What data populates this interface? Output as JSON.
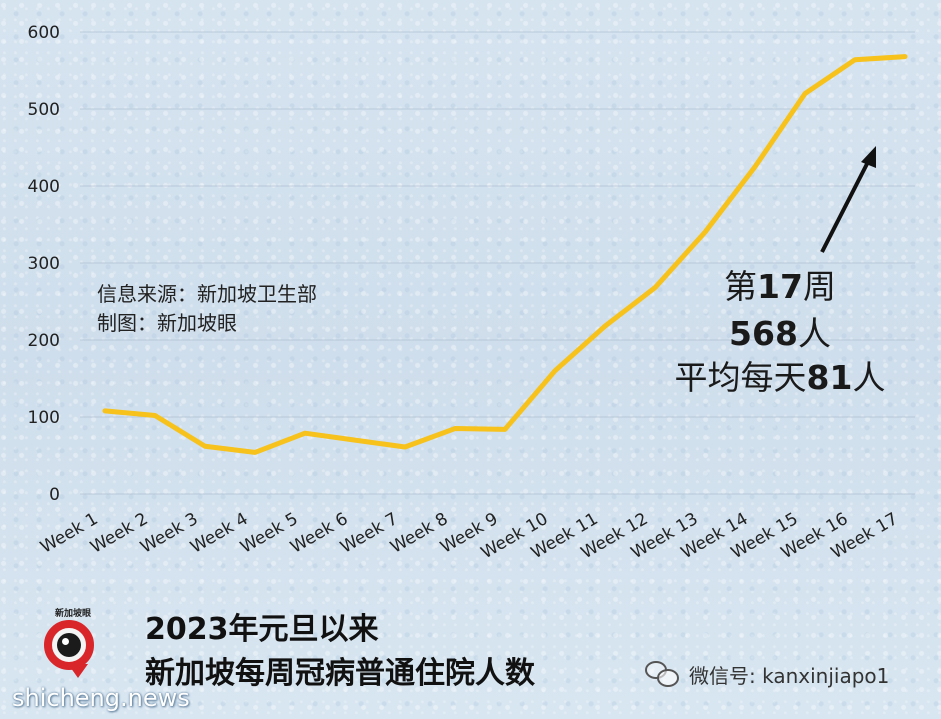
{
  "chart_data": {
    "type": "line",
    "categories": [
      "Week 1",
      "Week 2",
      "Week 3",
      "Week 4",
      "Week 5",
      "Week 6",
      "Week 7",
      "Week 8",
      "Week 9",
      "Week 10",
      "Week 11",
      "Week 12",
      "Week 13",
      "Week 14",
      "Week 15",
      "Week 16",
      "Week 17"
    ],
    "values": [
      108,
      102,
      62,
      54,
      79,
      70,
      61,
      85,
      84,
      160,
      218,
      268,
      340,
      425,
      520,
      564,
      568
    ],
    "ylim": [
      0,
      600
    ],
    "yticks": [
      0,
      100,
      200,
      300,
      400,
      500,
      600
    ],
    "grid": true,
    "line_color": "#f6c21b"
  },
  "source_note": "信息来源：新加坡卫生部",
  "credit_note": "制图：新加坡眼",
  "annotation": {
    "line1_pre": "第",
    "line1_num": "17",
    "line1_post": "周",
    "line2_num": "568",
    "line2_post": "人",
    "line3_pre": "平均每天",
    "line3_num": "81",
    "line3_post": "人"
  },
  "caption": {
    "line1": "2023年元旦以来",
    "line2": "新加坡每周冠病普通住院人数"
  },
  "logo": {
    "text": "新加坡眼",
    "icon": "eye-logo-icon",
    "color": "#d9262a"
  },
  "watermark_site": "shicheng.news",
  "wechat": {
    "icon": "wechat-icon",
    "text": "微信号: kanxinjiapo1"
  }
}
